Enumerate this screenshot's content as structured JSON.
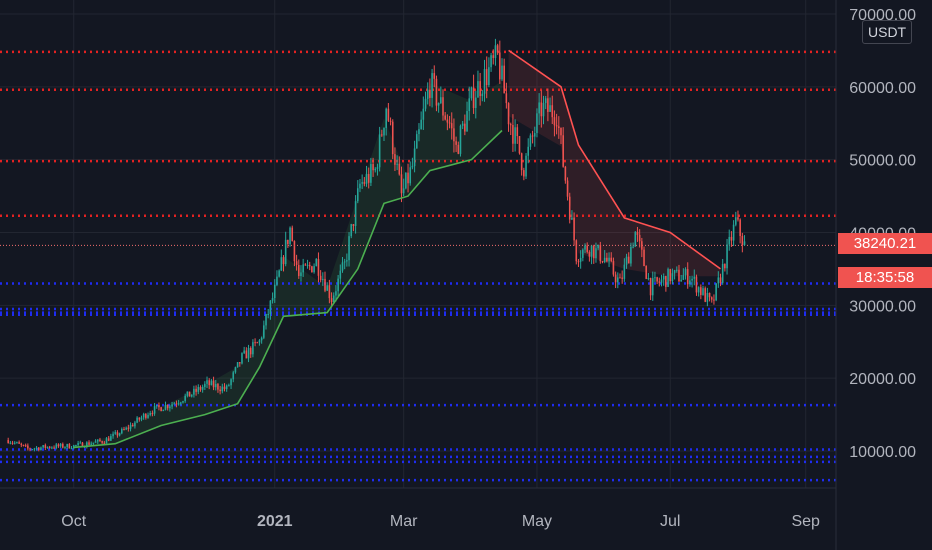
{
  "currency": "USDT",
  "last_price": "38240.21",
  "countdown": "18:35:58",
  "colors": {
    "background": "#131722",
    "grid": "#222631",
    "resistance": "#e32222",
    "support": "#1f2cf2",
    "current_price_line": "#f26d6d",
    "candle_up": "#26a69a",
    "candle_down": "#ef5350",
    "supertrend_up": "#4caf50",
    "supertrend_down": "#ff5252",
    "axis_text": "#b2b5be",
    "price_tag": "#f05350"
  },
  "chart_data": {
    "type": "candlestick",
    "title": "",
    "xlabel": "",
    "ylabel": "",
    "ylim": [
      3000,
      72000
    ],
    "grid": true,
    "x_ticks": [
      "Oct",
      "2021",
      "Mar",
      "May",
      "Jul",
      "Sep"
    ],
    "y_ticks": [
      "10000.00",
      "20000.00",
      "30000.00",
      "40000.00",
      "50000.00",
      "60000.00",
      "70000.00"
    ],
    "current_price": 38240.21,
    "horizontal_levels": {
      "resistance": [
        64800,
        59600,
        49800,
        42300
      ],
      "support": [
        33000,
        29500,
        29000,
        28700,
        16300,
        10200,
        9200,
        8500,
        6000
      ]
    },
    "price_path": [
      [
        "2020-09-01",
        11500
      ],
      [
        "2020-09-10",
        10300
      ],
      [
        "2020-09-20",
        10600
      ],
      [
        "2020-10-01",
        10700
      ],
      [
        "2020-10-15",
        11400
      ],
      [
        "2020-10-25",
        13000
      ],
      [
        "2020-11-05",
        15500
      ],
      [
        "2020-11-15",
        16500
      ],
      [
        "2020-11-25",
        18000
      ],
      [
        "2020-12-01",
        19200
      ],
      [
        "2020-12-10",
        18500
      ],
      [
        "2020-12-17",
        22800
      ],
      [
        "2020-12-25",
        25000
      ],
      [
        "2021-01-02",
        33000
      ],
      [
        "2021-01-08",
        40500
      ],
      [
        "2021-01-12",
        34000
      ],
      [
        "2021-01-20",
        36000
      ],
      [
        "2021-01-27",
        31000
      ],
      [
        "2021-02-02",
        35500
      ],
      [
        "2021-02-09",
        46500
      ],
      [
        "2021-02-16",
        48500
      ],
      [
        "2021-02-21",
        57500
      ],
      [
        "2021-02-28",
        45000
      ],
      [
        "2021-03-05",
        49000
      ],
      [
        "2021-03-13",
        60500
      ],
      [
        "2021-03-22",
        55000
      ],
      [
        "2021-03-25",
        51500
      ],
      [
        "2021-04-02",
        59000
      ],
      [
        "2021-04-13",
        64000
      ],
      [
        "2021-04-18",
        56000
      ],
      [
        "2021-04-25",
        49000
      ],
      [
        "2021-05-03",
        57000
      ],
      [
        "2021-05-10",
        56500
      ],
      [
        "2021-05-13",
        49500
      ],
      [
        "2021-05-19",
        37000
      ],
      [
        "2021-05-25",
        38000
      ],
      [
        "2021-06-01",
        36500
      ],
      [
        "2021-06-08",
        33000
      ],
      [
        "2021-06-15",
        40000
      ],
      [
        "2021-06-22",
        32500
      ],
      [
        "2021-07-01",
        34000
      ],
      [
        "2021-07-10",
        34000
      ],
      [
        "2021-07-20",
        30000
      ],
      [
        "2021-07-24",
        34000
      ],
      [
        "2021-07-31",
        41500
      ],
      [
        "2021-08-04",
        38240
      ]
    ],
    "supertrend": {
      "up": [
        [
          "2020-10-01",
          10500
        ],
        [
          "2020-10-20",
          11000
        ],
        [
          "2020-11-10",
          13500
        ],
        [
          "2020-11-30",
          15000
        ],
        [
          "2020-12-15",
          16500
        ],
        [
          "2020-12-25",
          21500
        ],
        [
          "2021-01-05",
          28500
        ],
        [
          "2021-01-25",
          29000
        ],
        [
          "2021-02-08",
          35000
        ],
        [
          "2021-02-20",
          44000
        ],
        [
          "2021-03-03",
          45000
        ],
        [
          "2021-03-13",
          48500
        ],
        [
          "2021-04-01",
          50000
        ],
        [
          "2021-04-15",
          54000
        ]
      ],
      "down": [
        [
          "2021-04-18",
          65000
        ],
        [
          "2021-05-12",
          60000
        ],
        [
          "2021-05-20",
          52000
        ],
        [
          "2021-06-10",
          42000
        ],
        [
          "2021-07-01",
          40000
        ],
        [
          "2021-07-24",
          35000
        ]
      ]
    }
  }
}
